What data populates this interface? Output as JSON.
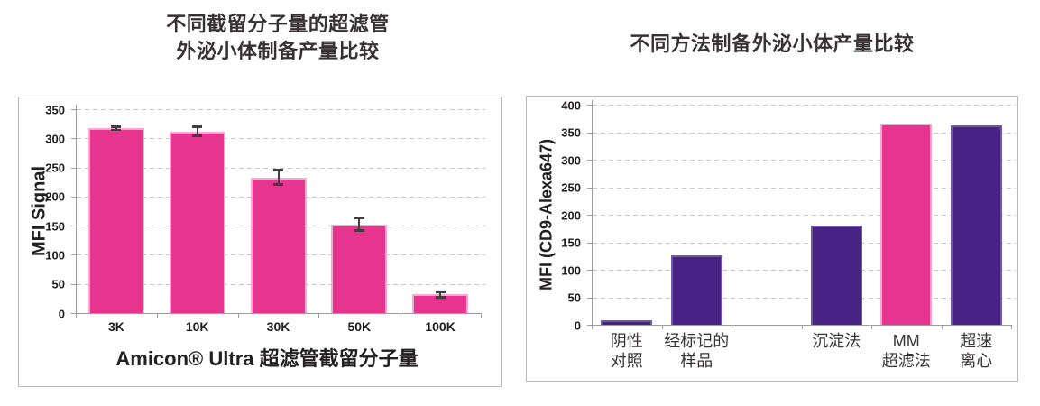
{
  "page": {
    "background": "#ffffff"
  },
  "colors": {
    "pink": "#E7358F",
    "pink_border": "#F4ABD2",
    "purple": "#482385",
    "purple_border": "#6F5BA3",
    "gridline": "#C6C6C6",
    "axis": "#9C9C9C",
    "box_border": "#B9B9B9",
    "title_text": "#373134",
    "tick_text": "#211C1D",
    "error_bar": "#3F3F3F"
  },
  "charts": [
    {
      "title_lines": [
        "不同截留分子量的超滤管",
        "外泌小体制备产量比较"
      ],
      "ylabel": "MFI Signal",
      "xlabel": "Amicon® Ultra 超滤管截留分子量"
    },
    {
      "title_lines": [
        "不同方法制备外泌小体产量比较"
      ],
      "ylabel": "MFI (CD9-Alexa647)",
      "xlabel": ""
    }
  ],
  "chart_data": [
    {
      "type": "bar",
      "title": "不同截留分子量的超滤管 外泌小体制备产量比较",
      "categories": [
        "3K",
        "10K",
        "30K",
        "50K",
        "100K"
      ],
      "values": [
        317,
        312,
        233,
        152,
        32
      ],
      "errors": [
        3,
        8,
        13,
        11,
        5
      ],
      "ylabel": "MFI Signal",
      "xlabel": "Amicon® Ultra 超滤管截留分子量",
      "ylim": [
        0,
        350
      ],
      "ytick_step": 50,
      "yticks": [
        0,
        50,
        100,
        150,
        200,
        250,
        300,
        350
      ],
      "grid": "horizontal-dashed",
      "legend": "none",
      "bar_color": "#E7358F",
      "bar_border": "#F4ABD2"
    },
    {
      "type": "bar",
      "title": "不同方法制备外泌小体产量比较",
      "categories": [
        "阴性\n对照",
        "经标记的\n样品",
        "",
        "沉淀法",
        "MM\n超滤法",
        "超速\n离心"
      ],
      "values": [
        8,
        127,
        null,
        181,
        365,
        362
      ],
      "errors": null,
      "ylabel": "MFI (CD9-Alexa647)",
      "xlabel": "",
      "ylim": [
        0,
        400
      ],
      "ytick_step": 50,
      "yticks": [
        0,
        50,
        100,
        150,
        200,
        250,
        300,
        350,
        400
      ],
      "grid": "horizontal-dashed",
      "legend": "none",
      "note": "third category slot is empty (no bar, no label)",
      "bar_colors": [
        "#482385",
        "#482385",
        null,
        "#482385",
        "#E7358F",
        "#482385"
      ],
      "bar_borders": [
        "#6F5BA3",
        "#6F5BA3",
        null,
        "#6F5BA3",
        "#F4ABD2",
        "#6F5BA3"
      ]
    }
  ]
}
